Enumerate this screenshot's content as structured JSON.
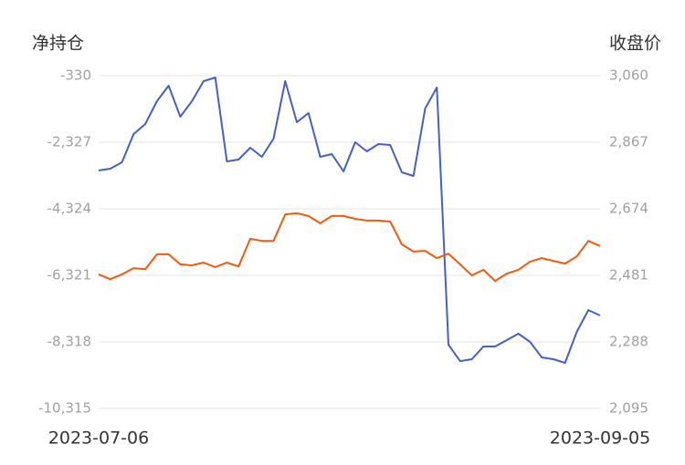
{
  "chart_data": {
    "type": "line",
    "y_title": "净持仓",
    "y2_title": "收盘价",
    "categories": [
      "2023-07-06",
      null,
      null,
      null,
      null,
      null,
      null,
      null,
      null,
      null,
      null,
      null,
      null,
      null,
      null,
      null,
      null,
      null,
      null,
      null,
      null,
      null,
      null,
      null,
      null,
      null,
      null,
      null,
      null,
      null,
      null,
      null,
      null,
      null,
      null,
      null,
      null,
      null,
      null,
      null,
      null,
      null,
      null,
      "2023-09-05"
    ],
    "series": [
      {
        "name": "净持仓",
        "color": "#4560c4",
        "axis": "y",
        "values": [
          -3175,
          -3121,
          -2929,
          -2081,
          -1780,
          -1096,
          -631,
          -1561,
          -1096,
          -494,
          -385,
          -2902,
          -2847,
          -2491,
          -2765,
          -2218,
          -494,
          -1725,
          -1452,
          -2765,
          -2683,
          -3203,
          -2327,
          -2601,
          -2382,
          -2409,
          -3230,
          -3340,
          -1315,
          -686,
          -8401,
          -8894,
          -8839,
          -8456,
          -8456,
          -8264,
          -8073,
          -8319,
          -8784,
          -8839,
          -8948,
          -8018,
          -7362,
          -7526
        ]
      },
      {
        "name": "收盘价",
        "color": "#f25a0e",
        "axis": "y2",
        "values": [
          2484,
          2470,
          2484,
          2502,
          2499,
          2542,
          2542,
          2513,
          2510,
          2518,
          2505,
          2518,
          2507,
          2587,
          2581,
          2581,
          2658,
          2661,
          2653,
          2632,
          2653,
          2653,
          2645,
          2640,
          2640,
          2637,
          2571,
          2550,
          2552,
          2531,
          2544,
          2513,
          2481,
          2497,
          2465,
          2486,
          2497,
          2521,
          2531,
          2523,
          2515,
          2536,
          2581,
          2566
        ]
      }
    ],
    "ylim": [
      -10315,
      -330
    ],
    "yticks": [
      -330,
      {
        "value": -2327,
        "label": "-2,327"
      },
      {
        "value": -4324,
        "label": "-4,324"
      },
      {
        "value": -6321,
        "label": "-6,321"
      },
      {
        "value": -8318,
        "label": "-8,318"
      },
      {
        "value": -10315,
        "label": "-10,315"
      }
    ],
    "y2lim": [
      2095,
      3060
    ],
    "y2ticks": [
      {
        "value": 3060,
        "label": "3,060"
      },
      {
        "value": 2867,
        "label": "2,867"
      },
      {
        "value": 2674,
        "label": "2,674"
      },
      {
        "value": 2481,
        "label": "2,481"
      },
      {
        "value": 2288,
        "label": "2,288"
      },
      {
        "value": 2095,
        "label": "2,095"
      }
    ],
    "grid": true
  }
}
